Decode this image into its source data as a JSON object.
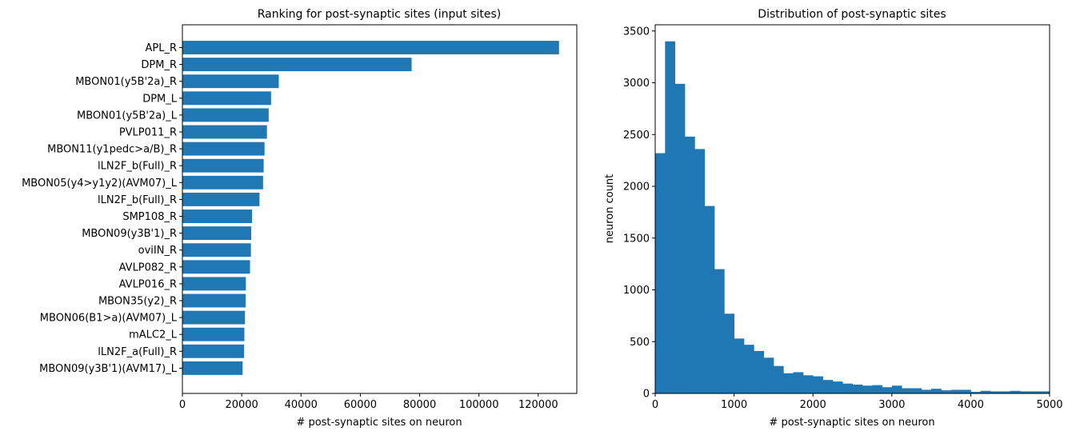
{
  "chart_data": [
    {
      "type": "bar",
      "orientation": "horizontal",
      "title": "Ranking for post-synaptic sites (input sites)",
      "xlabel": "# post-synaptic sites on neuron",
      "ylabel": "",
      "xlim": [
        0,
        133000
      ],
      "xticks": [
        0,
        20000,
        40000,
        60000,
        80000,
        100000,
        120000
      ],
      "color": "#1f77b4",
      "categories": [
        "APL_R",
        "DPM_R",
        "MBON01(y5B'2a)_R",
        "DPM_L",
        "MBON01(y5B'2a)_L",
        "PVLP011_R",
        "MBON11(y1pedc>a/B)_R",
        "lLN2F_b(Full)_R",
        "MBON05(y4>y1y2)(AVM07)_L",
        "lLN2F_b(Full)_R",
        "SMP108_R",
        "MBON09(y3B'1)_R",
        "oviIN_R",
        "AVLP082_R",
        "AVLP016_R",
        "MBON35(y2)_R",
        "MBON06(B1>a)(AVM07)_L",
        "mALC2_L",
        "lLN2F_a(Full)_R",
        "MBON09(y3B'1)(AVM17)_L"
      ],
      "values": [
        127000,
        77300,
        32500,
        29900,
        29100,
        28500,
        27700,
        27400,
        27200,
        26000,
        23500,
        23200,
        23100,
        22800,
        21400,
        21300,
        21100,
        20900,
        20800,
        20300
      ]
    },
    {
      "type": "bar",
      "subtype": "histogram",
      "title": "Distribution of post-synaptic sites",
      "xlabel": "# post-synaptic sites on neuron",
      "ylabel": "neuron count",
      "xlim": [
        0,
        5000
      ],
      "ylim": [
        0,
        3560
      ],
      "xticks": [
        0,
        1000,
        2000,
        3000,
        4000,
        5000
      ],
      "yticks": [
        0,
        500,
        1000,
        1500,
        2000,
        2500,
        3000,
        3500
      ],
      "bin_width": 125,
      "color": "#1f77b4",
      "values": [
        2320,
        3400,
        2990,
        2480,
        2360,
        1810,
        1200,
        770,
        530,
        470,
        410,
        345,
        265,
        195,
        205,
        175,
        165,
        130,
        115,
        95,
        85,
        75,
        80,
        60,
        75,
        50,
        50,
        35,
        45,
        30,
        35,
        35,
        15,
        25,
        20,
        20,
        25,
        20,
        20,
        20
      ]
    }
  ]
}
